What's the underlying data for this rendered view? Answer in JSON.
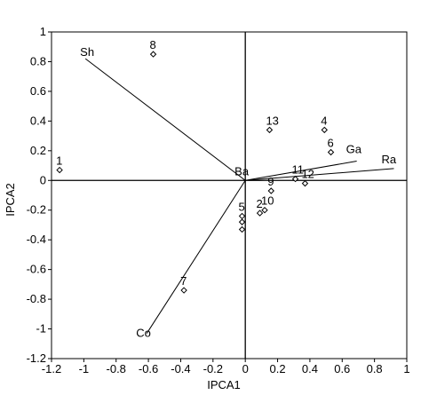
{
  "chart_data": {
    "type": "scatter",
    "title": "",
    "xlabel": "IPCA1",
    "ylabel": "IPCA2",
    "xlim": [
      -1.2,
      1
    ],
    "ylim": [
      -1.2,
      1
    ],
    "xticks": [
      "-1.2",
      "-1",
      "-0.8",
      "-0.6",
      "-0.4",
      "-0.2",
      "0",
      "0.2",
      "0.4",
      "0.6",
      "0.8",
      "1"
    ],
    "yticks": [
      "-1.2",
      "-1",
      "-0.8",
      "-0.6",
      "-0.4",
      "-0.2",
      "0",
      "0.2",
      "0.4",
      "0.6",
      "0.8",
      "1"
    ],
    "grid": false,
    "reference_lines": {
      "x": 0,
      "y": 0
    },
    "points": [
      {
        "label": "1",
        "x": -1.15,
        "y": 0.07
      },
      {
        "label": "8",
        "x": -0.57,
        "y": 0.85
      },
      {
        "label": "13",
        "x": 0.15,
        "y": 0.34
      },
      {
        "label": "4",
        "x": 0.49,
        "y": 0.34
      },
      {
        "label": "6",
        "x": 0.53,
        "y": 0.19
      },
      {
        "label": "11",
        "x": 0.31,
        "y": 0.01
      },
      {
        "label": "12",
        "x": 0.37,
        "y": -0.02
      },
      {
        "label": "9",
        "x": 0.16,
        "y": -0.07
      },
      {
        "label": "10",
        "x": 0.12,
        "y": -0.2
      },
      {
        "label": "2",
        "x": 0.09,
        "y": -0.22
      },
      {
        "label": "5",
        "x": -0.02,
        "y": -0.24
      },
      {
        "label": "",
        "x": -0.02,
        "y": -0.28
      },
      {
        "label": "",
        "x": -0.02,
        "y": -0.33
      },
      {
        "label": "7",
        "x": -0.38,
        "y": -0.74
      }
    ],
    "vectors": [
      {
        "label": "Sh",
        "x": -0.99,
        "y": 0.82
      },
      {
        "label": "Ga",
        "x": 0.69,
        "y": 0.13
      },
      {
        "label": "Ra",
        "x": 0.92,
        "y": 0.08
      },
      {
        "label": "Co",
        "x": -0.61,
        "y": -1.03
      },
      {
        "label": "Ba",
        "x": 0.0,
        "y": 0.0
      }
    ]
  }
}
